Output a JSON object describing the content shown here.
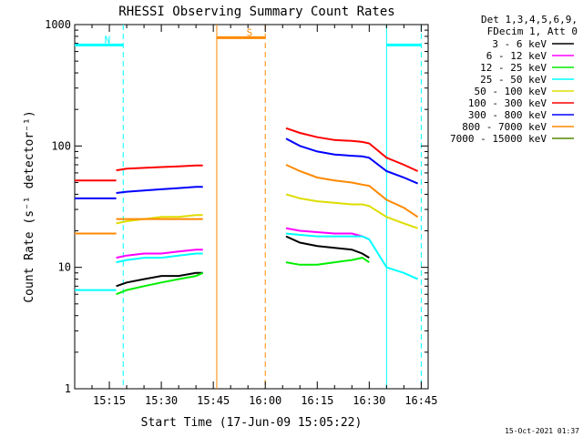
{
  "chart_data": {
    "type": "line",
    "title": "RHESSI Observing Summary Count Rates",
    "xlabel": "Start Time (17-Jun-09 15:05:22)",
    "ylabel": "Count Rate (s⁻¹ detector⁻¹)",
    "footer": "15-Oct-2021 01:37",
    "y_scale": "log",
    "ylim": [
      1,
      1000
    ],
    "y_ticks": [
      {
        "value": 1,
        "label": "1"
      },
      {
        "value": 10,
        "label": "10"
      },
      {
        "value": 100,
        "label": "100"
      },
      {
        "value": 1000,
        "label": "1000"
      }
    ],
    "x_range": [
      "15:05",
      "16:47"
    ],
    "x_ticks": [
      {
        "value": "15:15",
        "label": "15:15"
      },
      {
        "value": "15:30",
        "label": "15:30"
      },
      {
        "value": "15:45",
        "label": "15:45"
      },
      {
        "value": "16:00",
        "label": "16:00"
      },
      {
        "value": "16:15",
        "label": "16:15"
      },
      {
        "value": "16:30",
        "label": "16:30"
      },
      {
        "value": "16:45",
        "label": "16:45"
      }
    ],
    "legend_header": [
      "Det 1,3,4,5,6,9,",
      "FDecim 1, Att 0"
    ],
    "legend_position": "right",
    "series": [
      {
        "name": "3 - 6 keV",
        "color": "#000000",
        "segments": [
          {
            "x": [
              "15:10",
              "15:12",
              "15:17",
              "15:20",
              "15:25",
              "15:30",
              "15:35",
              "15:40",
              "15:42"
            ],
            "y": [
              null,
              null,
              7,
              7.5,
              8,
              8.5,
              8.5,
              9,
              9
            ]
          },
          {
            "x": [
              "16:06",
              "16:10",
              "16:15",
              "16:20",
              "16:25",
              "16:28",
              "16:30"
            ],
            "y": [
              18,
              16,
              15,
              14.5,
              14,
              13,
              12
            ]
          }
        ]
      },
      {
        "name": "6 - 12 keV",
        "color": "#ff00ff",
        "segments": [
          {
            "x": [
              "15:17",
              "15:20",
              "15:25",
              "15:30",
              "15:35",
              "15:40",
              "15:42"
            ],
            "y": [
              12,
              12.5,
              13,
              13,
              13.5,
              14,
              14
            ]
          },
          {
            "x": [
              "16:06",
              "16:10",
              "16:15",
              "16:20",
              "16:25",
              "16:28",
              "16:30"
            ],
            "y": [
              21,
              20,
              19.5,
              19,
              19,
              18,
              17
            ]
          }
        ]
      },
      {
        "name": "12 - 25 keV",
        "color": "#00ee00",
        "segments": [
          {
            "x": [
              "15:17",
              "15:20",
              "15:25",
              "15:30",
              "15:35",
              "15:40",
              "15:42"
            ],
            "y": [
              6,
              6.5,
              7,
              7.5,
              8,
              8.5,
              9
            ]
          },
          {
            "x": [
              "16:06",
              "16:10",
              "16:15",
              "16:20",
              "16:25",
              "16:28",
              "16:30"
            ],
            "y": [
              11,
              10.5,
              10.5,
              11,
              11.5,
              12,
              11
            ]
          }
        ]
      },
      {
        "name": "25 - 50 keV",
        "color": "#00ffff",
        "segments": [
          {
            "x": [
              "15:05",
              "15:10",
              "15:17"
            ],
            "y": [
              6.5,
              6.5,
              6.5
            ]
          },
          {
            "x": [
              "15:17",
              "15:20",
              "15:25",
              "15:30",
              "15:35",
              "15:40",
              "15:42"
            ],
            "y": [
              11,
              11.5,
              12,
              12,
              12.5,
              13,
              13
            ]
          },
          {
            "x": [
              "16:06",
              "16:10",
              "16:15",
              "16:20",
              "16:25",
              "16:28",
              "16:30",
              "16:35",
              "16:40",
              "16:44"
            ],
            "y": [
              19,
              18.5,
              18,
              18,
              18,
              18,
              17,
              10,
              9,
              8
            ]
          }
        ]
      },
      {
        "name": "50 - 100 keV",
        "color": "#dddd00",
        "segments": [
          {
            "x": [
              "15:17",
              "15:20",
              "15:25",
              "15:30",
              "15:35",
              "15:40",
              "15:42"
            ],
            "y": [
              23,
              24,
              25,
              26,
              26,
              27,
              27
            ]
          },
          {
            "x": [
              "16:06",
              "16:10",
              "16:15",
              "16:20",
              "16:25",
              "16:28",
              "16:30",
              "16:35",
              "16:40",
              "16:44"
            ],
            "y": [
              40,
              37,
              35,
              34,
              33,
              33,
              32,
              26,
              23,
              21
            ]
          }
        ]
      },
      {
        "name": "100 - 300 keV",
        "color": "#ff0000",
        "segments": [
          {
            "x": [
              "15:05",
              "15:10",
              "15:17"
            ],
            "y": [
              52,
              52,
              52
            ]
          },
          {
            "x": [
              "15:17",
              "15:20",
              "15:25",
              "15:30",
              "15:35",
              "15:40",
              "15:42"
            ],
            "y": [
              63,
              65,
              66,
              67,
              68,
              69,
              69
            ]
          },
          {
            "x": [
              "16:06",
              "16:10",
              "16:15",
              "16:20",
              "16:25",
              "16:28",
              "16:30",
              "16:35",
              "16:40",
              "16:44"
            ],
            "y": [
              140,
              128,
              118,
              112,
              110,
              108,
              105,
              80,
              70,
              62
            ]
          }
        ]
      },
      {
        "name": "300 - 800 keV",
        "color": "#0000ff",
        "segments": [
          {
            "x": [
              "15:05",
              "15:10",
              "15:17"
            ],
            "y": [
              37,
              37,
              37
            ]
          },
          {
            "x": [
              "15:17",
              "15:20",
              "15:25",
              "15:30",
              "15:35",
              "15:40",
              "15:42"
            ],
            "y": [
              41,
              42,
              43,
              44,
              45,
              46,
              46
            ]
          },
          {
            "x": [
              "16:06",
              "16:10",
              "16:15",
              "16:20",
              "16:25",
              "16:28",
              "16:30",
              "16:35",
              "16:40",
              "16:44"
            ],
            "y": [
              115,
              100,
              90,
              85,
              83,
              82,
              80,
              62,
              55,
              49
            ]
          }
        ]
      },
      {
        "name": "800 - 7000 keV",
        "color": "#ff8800",
        "segments": [
          {
            "x": [
              "15:05",
              "15:10",
              "15:17"
            ],
            "y": [
              19,
              19,
              19
            ]
          },
          {
            "x": [
              "15:17",
              "15:20",
              "15:25",
              "15:30",
              "15:35",
              "15:40",
              "15:42"
            ],
            "y": [
              25,
              25,
              25,
              25,
              25,
              25,
              25
            ]
          },
          {
            "x": [
              "16:06",
              "16:10",
              "16:15",
              "16:20",
              "16:25",
              "16:28",
              "16:30",
              "16:35",
              "16:40",
              "16:44"
            ],
            "y": [
              70,
              62,
              55,
              52,
              50,
              48,
              47,
              36,
              31,
              26
            ]
          }
        ]
      },
      {
        "name": "7000 - 15000 keV",
        "color": "#558800",
        "segments": []
      }
    ],
    "annotations": [
      {
        "label": "N",
        "color": "#00ffff",
        "style": "bar",
        "x_start": "15:05",
        "x_end": "15:19",
        "y": 680
      },
      {
        "label": "S",
        "color": "#ff8800",
        "style": "bar",
        "x_start": "15:46",
        "x_end": "16:00",
        "y": 780
      },
      {
        "label": "",
        "color": "#00ffff",
        "style": "bar",
        "x_start": "16:35",
        "x_end": "16:45",
        "y": 680
      }
    ],
    "vlines": [
      {
        "x": "15:19",
        "color": "#00ffff",
        "dashed": true
      },
      {
        "x": "15:46",
        "color": "#ff8800",
        "dashed": false
      },
      {
        "x": "16:00",
        "color": "#ff8800",
        "dashed": true
      },
      {
        "x": "16:35",
        "color": "#00ffff",
        "dashed": false
      },
      {
        "x": "16:45",
        "color": "#00ffff",
        "dashed": true
      }
    ]
  }
}
